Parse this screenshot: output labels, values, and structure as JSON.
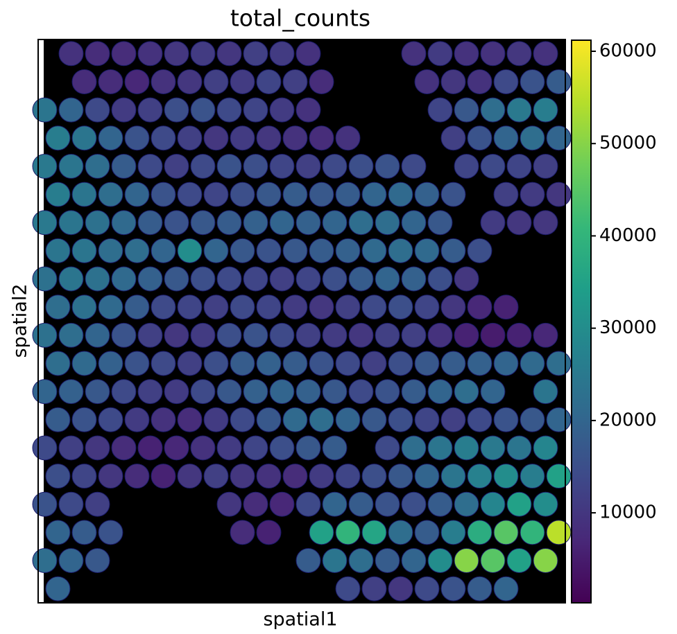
{
  "chart_data": {
    "type": "spatial",
    "title": "total_counts",
    "x_label": "spatial1",
    "y_label": "spatial2",
    "colormap": [
      "#440154",
      "#482878",
      "#3e4989",
      "#31688e",
      "#26828e",
      "#1f9e89",
      "#35b779",
      "#6ece58",
      "#b5de2b",
      "#fde725"
    ],
    "clim": [
      250,
      61200
    ],
    "cticks": [
      10000,
      20000,
      30000,
      40000,
      50000,
      60000
    ],
    "values": [
      [
        null,
        9000,
        8000,
        8000,
        9000,
        10000,
        11000,
        10000,
        12000,
        11000,
        9000,
        null,
        null,
        null,
        9000,
        11000,
        9000,
        9000,
        10000,
        9000
      ],
      [
        null,
        8000,
        8000,
        7000,
        9000,
        10000,
        12000,
        11000,
        13000,
        12000,
        8000,
        null,
        null,
        null,
        9000,
        10000,
        9000,
        14000,
        16000,
        18000
      ],
      [
        24000,
        20000,
        14000,
        11000,
        12000,
        15000,
        16000,
        14000,
        13000,
        11000,
        9000,
        null,
        null,
        null,
        null,
        13000,
        17000,
        22000,
        25000,
        26000
      ],
      [
        26000,
        24000,
        20000,
        16000,
        14000,
        12000,
        10000,
        11000,
        10000,
        9000,
        8000,
        9000,
        null,
        null,
        null,
        12000,
        16000,
        20000,
        22000,
        20000
      ],
      [
        25000,
        24000,
        22000,
        18000,
        14000,
        12000,
        14000,
        16000,
        15000,
        13000,
        12000,
        14000,
        15000,
        16000,
        14000,
        null,
        13000,
        14000,
        13000,
        12000
      ],
      [
        26000,
        24000,
        22000,
        20000,
        16000,
        14000,
        13000,
        15000,
        17000,
        18000,
        17000,
        18000,
        20000,
        21000,
        19000,
        16000,
        null,
        12000,
        11000,
        10000
      ],
      [
        25000,
        24000,
        23000,
        21000,
        18000,
        16000,
        17000,
        18000,
        19000,
        20000,
        19000,
        20000,
        22000,
        22000,
        20000,
        17000,
        null,
        11000,
        10000,
        10000
      ],
      [
        24000,
        24000,
        22000,
        22000,
        20000,
        30000,
        20000,
        17000,
        16000,
        17000,
        18000,
        19000,
        21000,
        22000,
        21000,
        18000,
        15000,
        null,
        null,
        null
      ],
      [
        23000,
        24000,
        23000,
        21000,
        19000,
        17000,
        15000,
        14000,
        13000,
        12000,
        13000,
        15000,
        18000,
        20000,
        19000,
        15000,
        10000,
        null,
        null,
        null
      ],
      [
        22000,
        23000,
        21000,
        18000,
        14000,
        13000,
        12000,
        14000,
        13000,
        11000,
        10000,
        12000,
        14000,
        15000,
        13000,
        10000,
        7000,
        6000,
        null,
        null
      ],
      [
        23000,
        22000,
        20000,
        16000,
        12000,
        10000,
        11000,
        15000,
        16000,
        14000,
        12000,
        11000,
        10000,
        12000,
        12000,
        9000,
        6000,
        5000,
        6000,
        7000
      ],
      [
        22000,
        21000,
        19000,
        16000,
        14000,
        12000,
        15000,
        18000,
        19000,
        18000,
        16000,
        14000,
        12000,
        15000,
        17000,
        18000,
        19000,
        20000,
        21000,
        22000
      ],
      [
        20000,
        19000,
        17000,
        14000,
        12000,
        11000,
        14000,
        17000,
        19000,
        20000,
        19000,
        17000,
        14000,
        16000,
        18000,
        20000,
        22000,
        20000,
        null,
        24000
      ],
      [
        18000,
        16000,
        14000,
        11000,
        9000,
        8000,
        11000,
        14000,
        17000,
        21000,
        22000,
        20000,
        17000,
        15000,
        13000,
        12000,
        14000,
        16000,
        17000,
        20000
      ],
      [
        14000,
        12000,
        10000,
        8000,
        6000,
        7000,
        9000,
        11000,
        13000,
        15000,
        17000,
        18000,
        null,
        14000,
        22000,
        24000,
        26000,
        25000,
        24000,
        28000
      ],
      [
        15000,
        13000,
        10000,
        8000,
        6000,
        10000,
        12000,
        10000,
        9000,
        8000,
        11000,
        13000,
        15000,
        17000,
        20000,
        24000,
        27000,
        30000,
        26000,
        35000
      ],
      [
        16000,
        14000,
        12000,
        null,
        null,
        null,
        null,
        10000,
        8000,
        7000,
        14000,
        20000,
        18000,
        16000,
        15000,
        18000,
        22000,
        28000,
        35000,
        30000
      ],
      [
        20000,
        18000,
        16000,
        null,
        null,
        null,
        null,
        8000,
        6000,
        null,
        35000,
        40000,
        36000,
        22000,
        18000,
        26000,
        38000,
        45000,
        40000,
        55000
      ],
      [
        22000,
        20000,
        17000,
        null,
        null,
        null,
        null,
        null,
        null,
        null,
        18000,
        24000,
        22000,
        18000,
        20000,
        30000,
        50000,
        45000,
        35000,
        50000
      ],
      [
        20000,
        null,
        null,
        null,
        null,
        null,
        null,
        null,
        null,
        null,
        null,
        14000,
        12000,
        10000,
        14000,
        16000,
        18000,
        20000,
        null,
        null
      ]
    ]
  }
}
